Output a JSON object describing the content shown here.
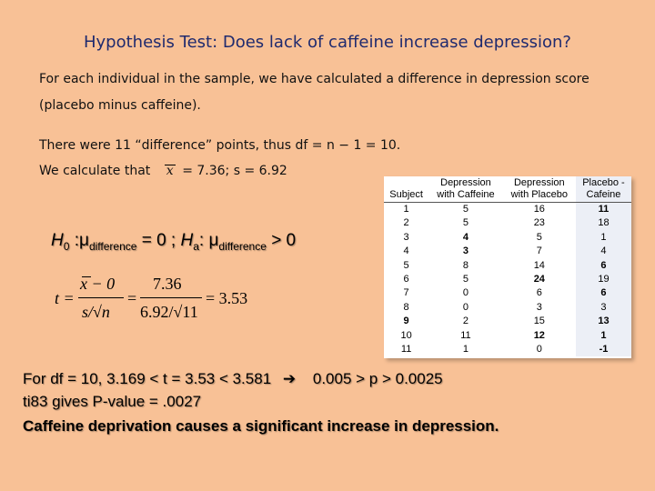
{
  "title": "Hypothesis Test: Does lack of caffeine increase depression?",
  "intro": {
    "line1": "For each individual in the sample, we have calculated a difference in depression score",
    "line2": "(placebo minus caffeine).",
    "line3": "There were 11 “difference” points, thus df = n − 1 = 10.",
    "line4_prefix": "We calculate that",
    "line4_xbar": "x",
    "line4_suffix": "= 7.36; s = 6.92"
  },
  "hypothesis": {
    "h0": "H",
    "h0_sub": "0",
    "mu1": ":μ",
    "sub1": "difference",
    "mid": "= 0 ; ",
    "ha": "H",
    "ha_sub": "a",
    "mu2": ": μ",
    "sub2": "difference",
    "end": "> 0"
  },
  "formula": {
    "t": "t =",
    "num1": "x − 0",
    "den1": "s/√n",
    "eq2": "=",
    "num2": "7.36",
    "den2": "6.92/√11",
    "result": "= 3.53"
  },
  "table": {
    "headers": [
      [
        "",
        "Subject"
      ],
      [
        "Depression",
        "with Caffeine"
      ],
      [
        "Depression",
        "with Placebo"
      ],
      [
        "Placebo -",
        "Cafeine"
      ]
    ],
    "rows": [
      [
        "1",
        "5",
        "16",
        "11"
      ],
      [
        "2",
        "5",
        "23",
        "18"
      ],
      [
        "3",
        "4",
        "5",
        "1"
      ],
      [
        "4",
        "3",
        "7",
        "4"
      ],
      [
        "5",
        "8",
        "14",
        "6"
      ],
      [
        "6",
        "5",
        "24",
        "19"
      ],
      [
        "7",
        "0",
        "6",
        "6"
      ],
      [
        "8",
        "0",
        "3",
        "3"
      ],
      [
        "9",
        "2",
        "15",
        "13"
      ],
      [
        "10",
        "11",
        "12",
        "1"
      ],
      [
        "11",
        "1",
        "0",
        "-1"
      ]
    ]
  },
  "conclusion": {
    "line1_a": "For df = 10,   3.169 < t = 3.53 < 3.581",
    "arrow": "➔",
    "line1_b": "0.005 > p > 0.0025",
    "line2": "ti83 gives P-value = .0027",
    "line3": "Caffeine deprivation causes a significant increase in depression."
  }
}
